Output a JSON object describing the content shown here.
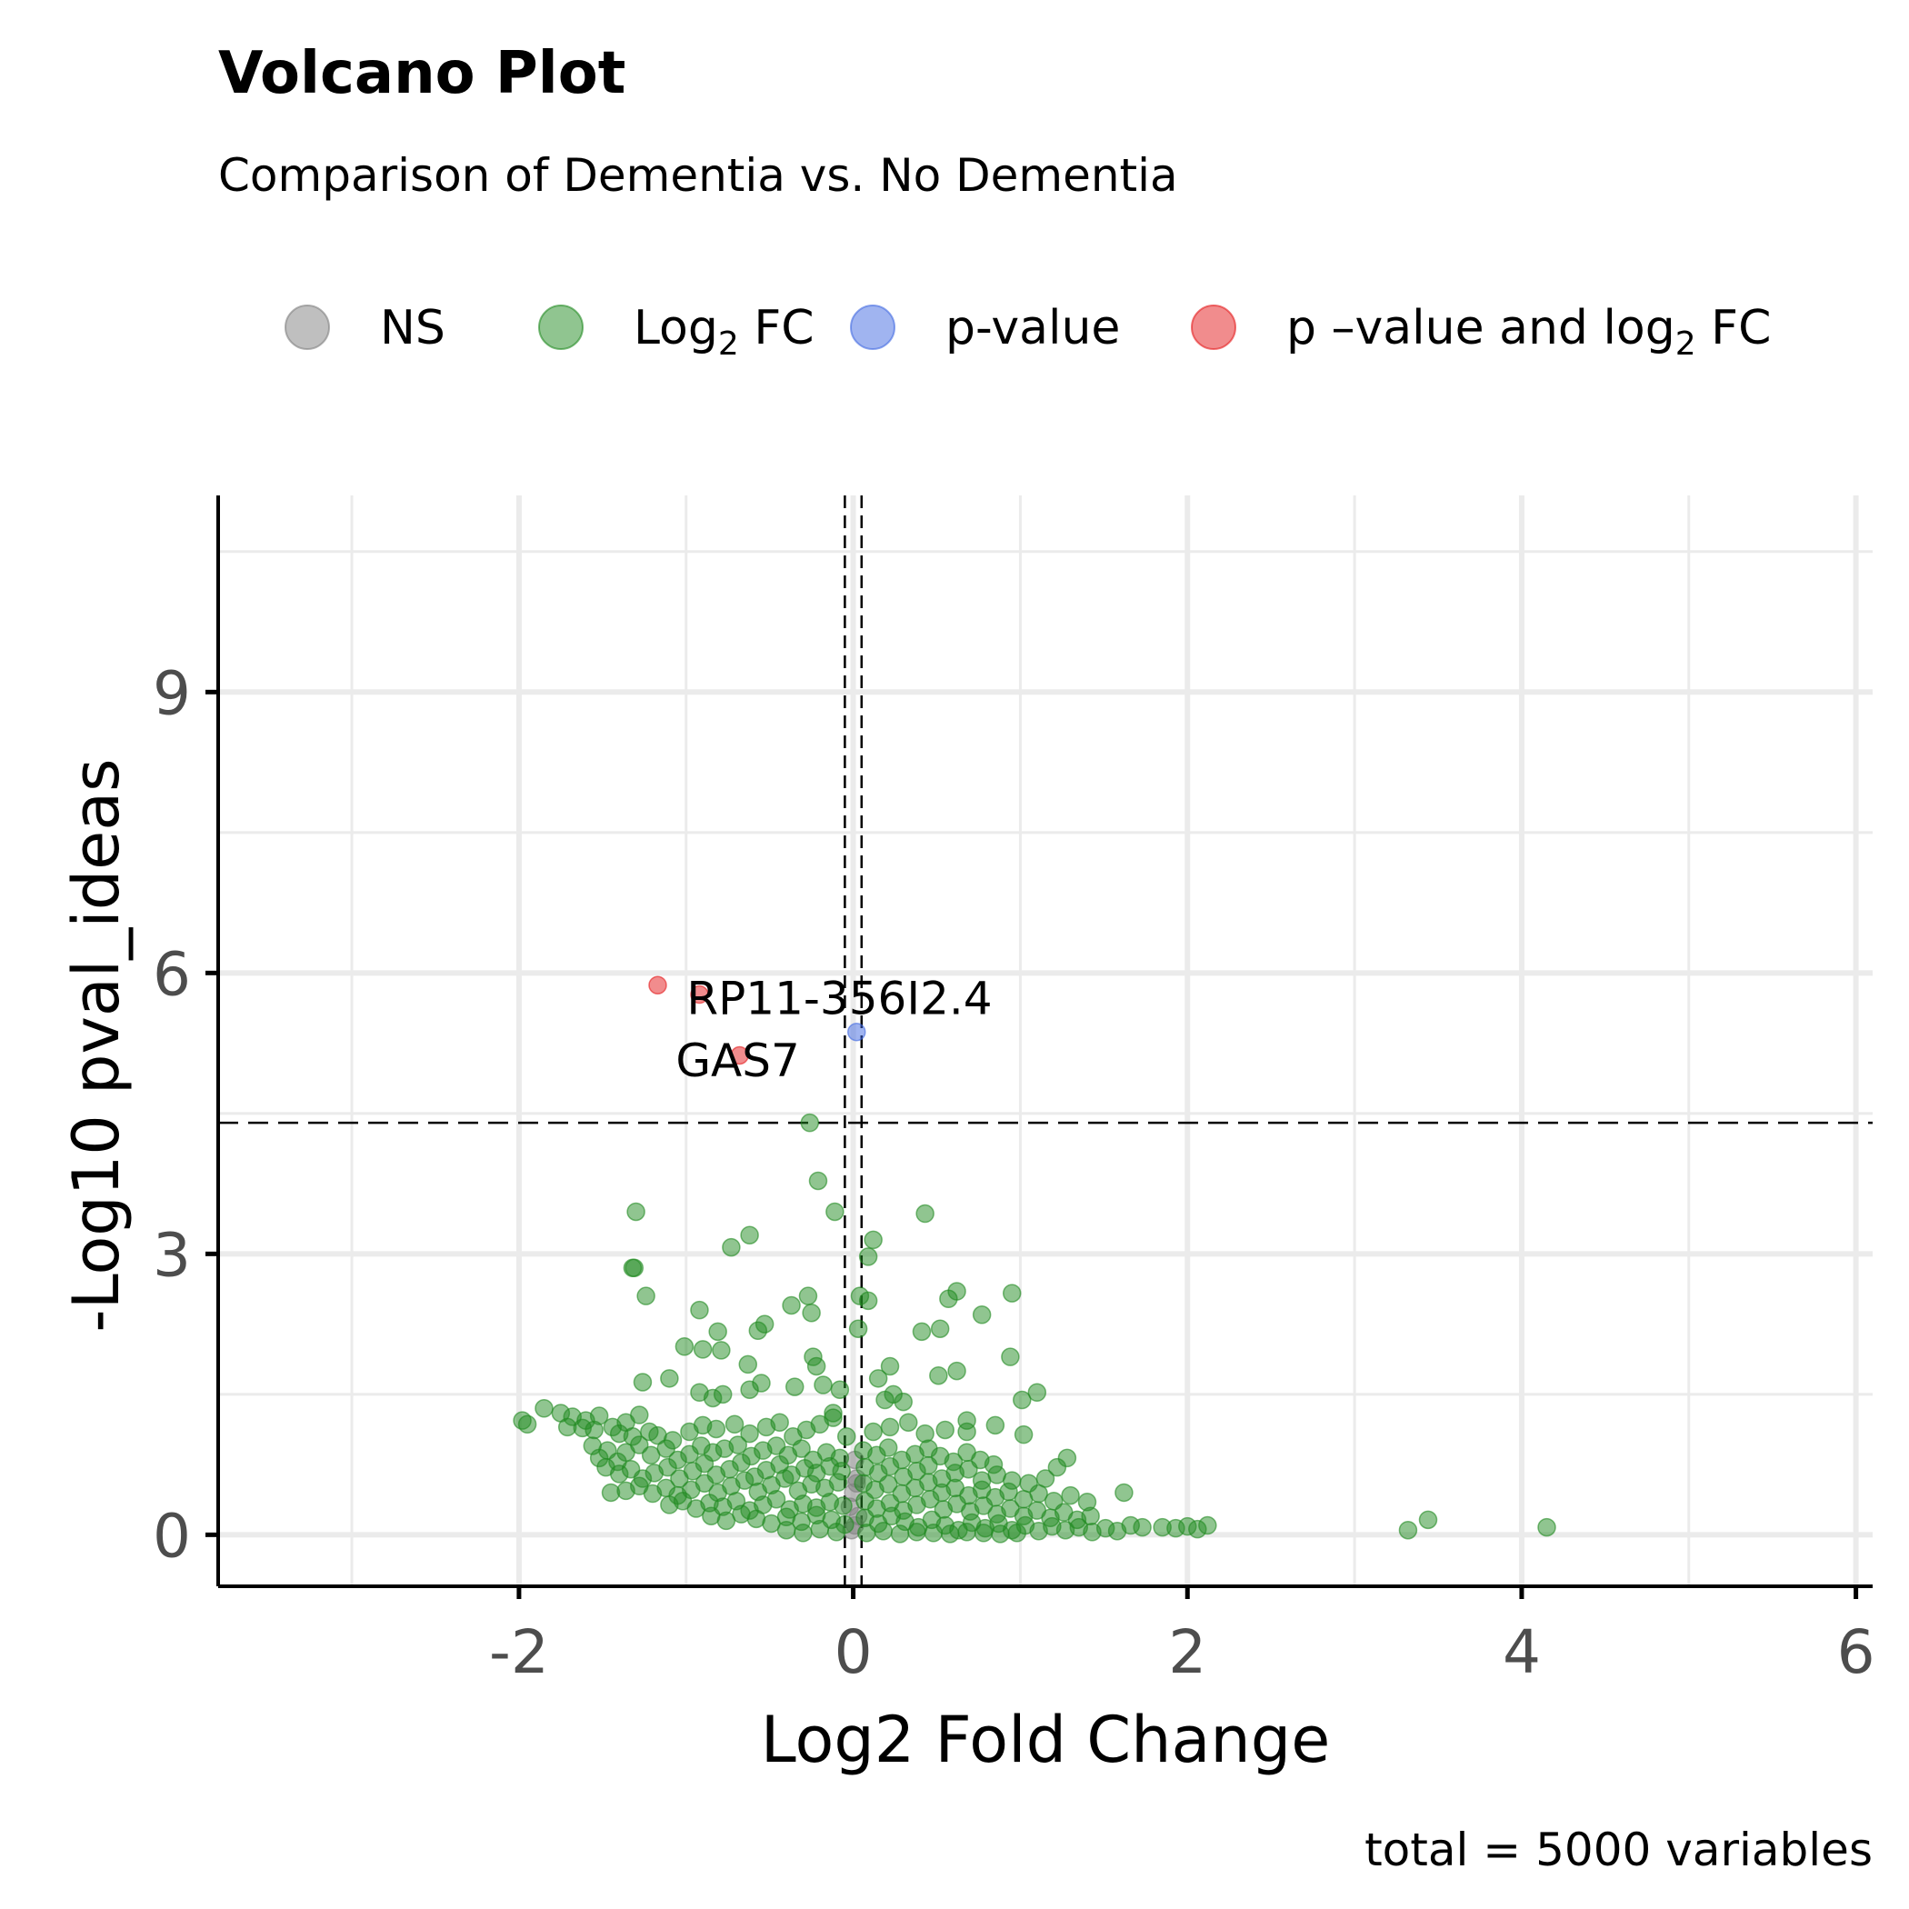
{
  "chart_data": {
    "type": "scatter",
    "title": "Volcano Plot",
    "subtitle": "Comparison of Dementia vs. No Dementia",
    "xlabel": "Log2 Fold Change",
    "ylabel": "-Log10 pval_ideas",
    "caption": "total = 5000 variables",
    "xlim": [
      -3.8,
      6.1
    ],
    "ylim": [
      -0.55,
      11.1
    ],
    "x_ticks": [
      -2,
      0,
      2,
      4,
      6
    ],
    "x_tick_labels": [
      "-2",
      "0",
      "2",
      "4",
      "6"
    ],
    "y_ticks": [
      0,
      3,
      6,
      9
    ],
    "y_tick_labels": [
      "0",
      "3",
      "6",
      "9"
    ],
    "grid": true,
    "legend_position": "top",
    "thresholds": {
      "log2fc_cutoffs": [
        -0.05,
        0.05
      ],
      "neg_log10_p_cutoff": 4.4
    },
    "legend": [
      {
        "key": "NS",
        "label": "NS",
        "color": "#7f7f7f"
      },
      {
        "key": "FC",
        "label": "Log",
        "sub": "2",
        "label_after": " FC",
        "color": "#228b22"
      },
      {
        "key": "P",
        "label": "p-value",
        "color": "#4169e1"
      },
      {
        "key": "PFC",
        "label": "p –value and log",
        "sub": "2",
        "label_after": " FC",
        "color": "#e41a1c"
      }
    ],
    "series": [
      {
        "key": "NS",
        "name": "NS",
        "color": "#7f7f7f",
        "points": [
          [
            0.01,
            0.8
          ],
          [
            0.02,
            0.6
          ],
          [
            0.0,
            0.45
          ],
          [
            -0.02,
            0.3
          ],
          [
            0.03,
            0.2
          ],
          [
            0.01,
            0.1
          ],
          [
            -0.01,
            0.05
          ],
          [
            0.02,
            0.55
          ]
        ]
      },
      {
        "key": "FC",
        "name": "Log2 FC",
        "color": "#228b22",
        "points": [
          [
            -0.26,
            4.4
          ],
          [
            -0.21,
            3.78
          ],
          [
            -0.11,
            3.45
          ],
          [
            0.43,
            3.43
          ],
          [
            -1.3,
            3.45
          ],
          [
            -0.62,
            3.2
          ],
          [
            -0.73,
            3.07
          ],
          [
            0.12,
            3.15
          ],
          [
            0.09,
            2.97
          ],
          [
            -1.31,
            2.85
          ],
          [
            -1.32,
            2.85
          ],
          [
            -1.24,
            2.55
          ],
          [
            -0.27,
            2.55
          ],
          [
            -0.37,
            2.45
          ],
          [
            -0.25,
            2.37
          ],
          [
            0.04,
            2.55
          ],
          [
            0.09,
            2.5
          ],
          [
            0.62,
            2.6
          ],
          [
            0.57,
            2.52
          ],
          [
            0.95,
            2.58
          ],
          [
            0.77,
            2.35
          ],
          [
            -0.92,
            2.4
          ],
          [
            -0.81,
            2.17
          ],
          [
            -0.53,
            2.25
          ],
          [
            -0.57,
            2.18
          ],
          [
            0.41,
            2.17
          ],
          [
            0.52,
            2.2
          ],
          [
            0.03,
            2.2
          ],
          [
            -1.01,
            2.01
          ],
          [
            -0.9,
            1.98
          ],
          [
            -0.79,
            1.97
          ],
          [
            -0.63,
            1.82
          ],
          [
            -0.24,
            1.9
          ],
          [
            -0.22,
            1.8
          ],
          [
            0.94,
            1.9
          ],
          [
            0.22,
            1.8
          ],
          [
            0.62,
            1.75
          ],
          [
            0.51,
            1.7
          ],
          [
            0.15,
            1.67
          ],
          [
            -1.26,
            1.63
          ],
          [
            -1.1,
            1.67
          ],
          [
            -0.92,
            1.52
          ],
          [
            -0.84,
            1.46
          ],
          [
            -0.78,
            1.5
          ],
          [
            -0.62,
            1.55
          ],
          [
            -0.55,
            1.62
          ],
          [
            -0.35,
            1.58
          ],
          [
            -0.18,
            1.6
          ],
          [
            -0.08,
            1.55
          ],
          [
            1.1,
            1.52
          ],
          [
            1.01,
            1.44
          ],
          [
            0.24,
            1.5
          ],
          [
            0.3,
            1.42
          ],
          [
            -0.12,
            1.3
          ],
          [
            0.19,
            1.44
          ],
          [
            -1.85,
            1.35
          ],
          [
            -1.75,
            1.3
          ],
          [
            -1.68,
            1.26
          ],
          [
            -1.6,
            1.22
          ],
          [
            -1.52,
            1.27
          ],
          [
            -1.44,
            1.15
          ],
          [
            -1.36,
            1.2
          ],
          [
            -1.28,
            1.28
          ],
          [
            -1.22,
            1.1
          ],
          [
            -1.17,
            1.06
          ],
          [
            -1.08,
            1.01
          ],
          [
            -0.98,
            1.1
          ],
          [
            -0.9,
            1.17
          ],
          [
            -0.82,
            1.13
          ],
          [
            -0.71,
            1.18
          ],
          [
            -0.62,
            1.08
          ],
          [
            -0.52,
            1.15
          ],
          [
            -0.44,
            1.2
          ],
          [
            -0.36,
            1.05
          ],
          [
            -0.28,
            1.12
          ],
          [
            -0.2,
            1.18
          ],
          [
            -0.12,
            1.25
          ],
          [
            -0.04,
            1.05
          ],
          [
            0.12,
            1.1
          ],
          [
            0.22,
            1.15
          ],
          [
            0.33,
            1.2
          ],
          [
            0.43,
            1.08
          ],
          [
            0.55,
            1.12
          ],
          [
            0.68,
            1.1
          ],
          [
            0.85,
            1.17
          ],
          [
            0.68,
            1.22
          ],
          [
            1.02,
            1.07
          ],
          [
            -1.98,
            1.22
          ],
          [
            -1.95,
            1.18
          ],
          [
            -1.71,
            1.15
          ],
          [
            -1.62,
            1.14
          ],
          [
            -1.55,
            1.12
          ],
          [
            -1.4,
            1.08
          ],
          [
            -1.32,
            1.05
          ],
          [
            -1.56,
            0.95
          ],
          [
            -1.47,
            0.9
          ],
          [
            -1.52,
            0.82
          ],
          [
            -1.41,
            0.78
          ],
          [
            -1.36,
            0.88
          ],
          [
            -1.28,
            0.96
          ],
          [
            -1.21,
            0.85
          ],
          [
            -1.12,
            0.92
          ],
          [
            -1.05,
            0.8
          ],
          [
            -0.98,
            0.86
          ],
          [
            -0.91,
            0.95
          ],
          [
            -0.84,
            0.88
          ],
          [
            -0.77,
            0.92
          ],
          [
            -0.69,
            0.96
          ],
          [
            -0.61,
            0.84
          ],
          [
            -0.54,
            0.9
          ],
          [
            -0.46,
            0.95
          ],
          [
            -0.39,
            0.85
          ],
          [
            -0.31,
            0.92
          ],
          [
            -0.24,
            0.8
          ],
          [
            -0.16,
            0.88
          ],
          [
            -0.08,
            0.82
          ],
          [
            0.06,
            0.9
          ],
          [
            0.14,
            0.85
          ],
          [
            0.21,
            0.93
          ],
          [
            0.29,
            0.8
          ],
          [
            0.37,
            0.86
          ],
          [
            0.45,
            0.92
          ],
          [
            0.52,
            0.84
          ],
          [
            0.6,
            0.78
          ],
          [
            0.68,
            0.88
          ],
          [
            0.76,
            0.8
          ],
          [
            0.84,
            0.75
          ],
          [
            1.28,
            0.82
          ],
          [
            1.22,
            0.72
          ],
          [
            -1.48,
            0.72
          ],
          [
            -1.4,
            0.65
          ],
          [
            -1.33,
            0.7
          ],
          [
            -1.26,
            0.6
          ],
          [
            -1.19,
            0.66
          ],
          [
            -1.11,
            0.72
          ],
          [
            -1.04,
            0.6
          ],
          [
            -0.96,
            0.68
          ],
          [
            -0.89,
            0.76
          ],
          [
            -0.82,
            0.64
          ],
          [
            -0.74,
            0.7
          ],
          [
            -0.67,
            0.77
          ],
          [
            -0.59,
            0.62
          ],
          [
            -0.52,
            0.69
          ],
          [
            -0.44,
            0.75
          ],
          [
            -0.37,
            0.64
          ],
          [
            -0.29,
            0.71
          ],
          [
            -0.22,
            0.66
          ],
          [
            -0.14,
            0.73
          ],
          [
            -0.07,
            0.68
          ],
          [
            0.07,
            0.72
          ],
          [
            0.15,
            0.66
          ],
          [
            0.22,
            0.73
          ],
          [
            0.3,
            0.62
          ],
          [
            0.38,
            0.68
          ],
          [
            0.45,
            0.74
          ],
          [
            0.53,
            0.6
          ],
          [
            0.61,
            0.66
          ],
          [
            0.69,
            0.7
          ],
          [
            0.77,
            0.58
          ],
          [
            0.86,
            0.64
          ],
          [
            0.95,
            0.58
          ],
          [
            1.05,
            0.55
          ],
          [
            1.15,
            0.6
          ],
          [
            -1.45,
            0.45
          ],
          [
            -1.36,
            0.47
          ],
          [
            -1.28,
            0.52
          ],
          [
            -1.2,
            0.44
          ],
          [
            -1.12,
            0.5
          ],
          [
            -1.05,
            0.42
          ],
          [
            -0.97,
            0.48
          ],
          [
            -0.89,
            0.55
          ],
          [
            -0.81,
            0.45
          ],
          [
            -0.73,
            0.52
          ],
          [
            -0.65,
            0.58
          ],
          [
            -0.57,
            0.46
          ],
          [
            -0.49,
            0.53
          ],
          [
            -0.41,
            0.6
          ],
          [
            -0.33,
            0.47
          ],
          [
            -0.25,
            0.54
          ],
          [
            -0.17,
            0.5
          ],
          [
            -0.09,
            0.56
          ],
          [
            0.06,
            0.55
          ],
          [
            0.13,
            0.48
          ],
          [
            0.21,
            0.54
          ],
          [
            0.29,
            0.44
          ],
          [
            0.37,
            0.5
          ],
          [
            0.45,
            0.56
          ],
          [
            0.53,
            0.45
          ],
          [
            0.61,
            0.5
          ],
          [
            0.69,
            0.42
          ],
          [
            0.77,
            0.48
          ],
          [
            0.85,
            0.4
          ],
          [
            0.93,
            0.46
          ],
          [
            1.02,
            0.38
          ],
          [
            1.11,
            0.44
          ],
          [
            1.2,
            0.36
          ],
          [
            1.3,
            0.42
          ],
          [
            1.4,
            0.35
          ],
          [
            1.62,
            0.45
          ],
          [
            -1.1,
            0.32
          ],
          [
            -1.02,
            0.36
          ],
          [
            -0.94,
            0.28
          ],
          [
            -0.86,
            0.34
          ],
          [
            -0.78,
            0.3
          ],
          [
            -0.7,
            0.36
          ],
          [
            -0.62,
            0.26
          ],
          [
            -0.54,
            0.32
          ],
          [
            -0.46,
            0.38
          ],
          [
            -0.38,
            0.27
          ],
          [
            -0.3,
            0.33
          ],
          [
            -0.22,
            0.29
          ],
          [
            -0.14,
            0.35
          ],
          [
            -0.06,
            0.31
          ],
          [
            0.07,
            0.36
          ],
          [
            0.14,
            0.28
          ],
          [
            0.22,
            0.34
          ],
          [
            0.3,
            0.26
          ],
          [
            0.38,
            0.32
          ],
          [
            0.46,
            0.38
          ],
          [
            0.54,
            0.27
          ],
          [
            0.62,
            0.33
          ],
          [
            0.7,
            0.25
          ],
          [
            0.78,
            0.31
          ],
          [
            0.86,
            0.22
          ],
          [
            0.94,
            0.28
          ],
          [
            1.02,
            0.2
          ],
          [
            1.1,
            0.26
          ],
          [
            1.18,
            0.18
          ],
          [
            1.26,
            0.24
          ],
          [
            1.34,
            0.16
          ],
          [
            1.42,
            0.2
          ],
          [
            -0.85,
            0.2
          ],
          [
            -0.76,
            0.15
          ],
          [
            -0.67,
            0.22
          ],
          [
            -0.58,
            0.17
          ],
          [
            -0.49,
            0.12
          ],
          [
            -0.4,
            0.19
          ],
          [
            -0.31,
            0.14
          ],
          [
            -0.22,
            0.21
          ],
          [
            -0.13,
            0.16
          ],
          [
            -0.05,
            0.11
          ],
          [
            0.07,
            0.18
          ],
          [
            0.15,
            0.12
          ],
          [
            0.23,
            0.2
          ],
          [
            0.31,
            0.14
          ],
          [
            0.39,
            0.08
          ],
          [
            0.47,
            0.16
          ],
          [
            0.55,
            0.1
          ],
          [
            0.63,
            0.05
          ],
          [
            0.71,
            0.13
          ],
          [
            0.79,
            0.07
          ],
          [
            0.87,
            0.12
          ],
          [
            0.95,
            0.05
          ],
          [
            1.03,
            0.1
          ],
          [
            1.11,
            0.04
          ],
          [
            1.19,
            0.09
          ],
          [
            1.27,
            0.05
          ],
          [
            1.35,
            0.08
          ],
          [
            1.43,
            0.03
          ],
          [
            1.51,
            0.07
          ],
          [
            1.58,
            0.04
          ],
          [
            1.66,
            0.1
          ],
          [
            1.73,
            0.08
          ],
          [
            -0.4,
            0.05
          ],
          [
            -0.3,
            0.02
          ],
          [
            -0.2,
            0.06
          ],
          [
            -0.1,
            0.03
          ],
          [
            0.08,
            0.02
          ],
          [
            0.18,
            0.04
          ],
          [
            0.28,
            0.01
          ],
          [
            0.38,
            0.03
          ],
          [
            0.48,
            0.02
          ],
          [
            0.58,
            0.01
          ],
          [
            0.68,
            0.03
          ],
          [
            0.78,
            0.02
          ],
          [
            0.88,
            0.01
          ],
          [
            0.98,
            0.02
          ],
          [
            1.85,
            0.08
          ],
          [
            1.93,
            0.07
          ],
          [
            2.0,
            0.09
          ],
          [
            2.06,
            0.06
          ],
          [
            2.12,
            0.1
          ],
          [
            3.32,
            0.05
          ],
          [
            3.44,
            0.16
          ],
          [
            4.15,
            0.08
          ]
        ]
      },
      {
        "key": "P",
        "name": "p-value",
        "color": "#4169e1",
        "points": [
          [
            0.02,
            5.37
          ]
        ]
      },
      {
        "key": "PFC",
        "name": "p–value and log2 FC",
        "color": "#e41a1c",
        "points": [
          [
            -1.17,
            5.87
          ],
          [
            -0.92,
            5.77
          ],
          [
            -0.68,
            5.12
          ]
        ]
      }
    ],
    "annotations": [
      {
        "text": "RP11-356I2.4",
        "x": -1.17,
        "y": 5.87
      },
      {
        "text": "GAS7",
        "x": -0.68,
        "y": 5.12
      }
    ]
  }
}
